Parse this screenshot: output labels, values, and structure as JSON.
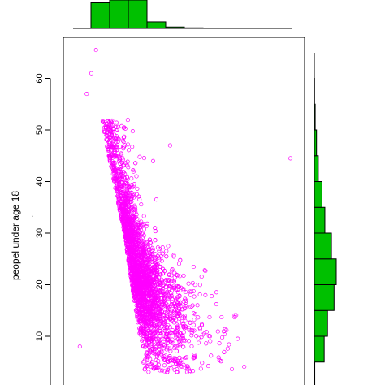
{
  "chart_data": {
    "type": "scatter",
    "title": "",
    "xlabel": "",
    "ylabel": "peopel under age 18",
    "ylim": [
      0,
      67
    ],
    "yticks": [
      10,
      20,
      30,
      40,
      50,
      60
    ],
    "xlim": [
      0,
      10
    ],
    "point_color": "#ff00ff",
    "hist_color": "#00c000",
    "scatter": {
      "n_points_approx": 3000,
      "description_of_cloud": "dense band from (x~1.5,y~48) down to (x~3,y~15) then spreading right to x~7 at low y",
      "notable_points": [
        {
          "x": 1.2,
          "y": 65.5
        },
        {
          "x": 1.0,
          "y": 61
        },
        {
          "x": 0.8,
          "y": 57
        },
        {
          "x": 4.4,
          "y": 47
        },
        {
          "x": 9.6,
          "y": 44.5
        },
        {
          "x": 0.5,
          "y": 8
        }
      ]
    },
    "top_histogram": {
      "bins_x": [
        [
          1.0,
          2.0
        ],
        [
          2.0,
          3.0
        ],
        [
          3.0,
          4.0
        ],
        [
          4.0,
          5.0
        ],
        [
          5.0,
          6.0
        ],
        [
          6.0,
          7.0
        ],
        [
          7.0,
          8.0
        ]
      ],
      "relative_heights": [
        0.9,
        1.0,
        1.0,
        0.23,
        0.05,
        0.02,
        0.01
      ]
    },
    "right_histogram": {
      "bins_y": [
        [
          0,
          5
        ],
        [
          5,
          10
        ],
        [
          10,
          15
        ],
        [
          15,
          20
        ],
        [
          20,
          25
        ],
        [
          25,
          30
        ],
        [
          30,
          35
        ],
        [
          35,
          40
        ],
        [
          40,
          45
        ],
        [
          45,
          50
        ],
        [
          50,
          55
        ],
        [
          55,
          60
        ]
      ],
      "relative_counts": [
        0.02,
        0.45,
        0.6,
        0.9,
        1.0,
        0.78,
        0.48,
        0.35,
        0.18,
        0.1,
        0.04,
        0.01
      ]
    }
  }
}
